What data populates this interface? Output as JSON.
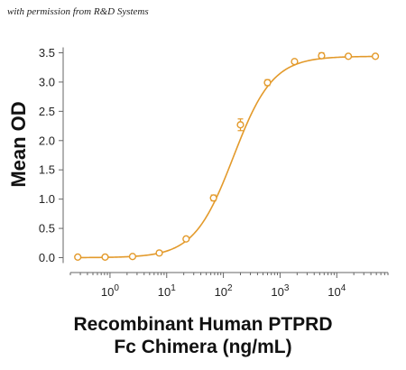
{
  "credit": "with permission from R&D Systems",
  "chart_data": {
    "type": "scatter",
    "ylabel": "Mean OD",
    "xlabel_lines": [
      "Recombinant Human PTPRD",
      "Fc Chimera (ng/mL)"
    ],
    "x_scale": "log",
    "xlim": [
      0.2,
      80000
    ],
    "ylim": [
      -0.1,
      3.6
    ],
    "x_ticks": [
      1,
      10,
      100,
      1000,
      10000
    ],
    "x_tick_labels": [
      {
        "base": "10",
        "exp": "0"
      },
      {
        "base": "10",
        "exp": "1"
      },
      {
        "base": "10",
        "exp": "2"
      },
      {
        "base": "10",
        "exp": "3"
      },
      {
        "base": "10",
        "exp": "4"
      }
    ],
    "y_ticks": [
      0.0,
      0.5,
      1.0,
      1.5,
      2.0,
      2.5,
      3.0,
      3.5
    ],
    "y_tick_labels": [
      "0.0",
      "0.5",
      "1.0",
      "1.5",
      "2.0",
      "2.5",
      "3.0",
      "3.5"
    ],
    "color": "#E39A2B",
    "series": [
      {
        "points": [
          {
            "x": 0.27,
            "y": 0.01,
            "err": 0.01
          },
          {
            "x": 0.82,
            "y": 0.01,
            "err": 0.01
          },
          {
            "x": 2.5,
            "y": 0.02,
            "err": 0.01
          },
          {
            "x": 7.4,
            "y": 0.08,
            "err": 0.02
          },
          {
            "x": 22,
            "y": 0.32,
            "err": 0.03
          },
          {
            "x": 67,
            "y": 1.02,
            "err": 0.05
          },
          {
            "x": 200,
            "y": 2.27,
            "err": 0.1
          },
          {
            "x": 600,
            "y": 2.99,
            "err": 0.05
          },
          {
            "x": 1800,
            "y": 3.35,
            "err": 0.03
          },
          {
            "x": 5400,
            "y": 3.45,
            "err": 0.05
          },
          {
            "x": 16000,
            "y": 3.44,
            "err": 0.03
          },
          {
            "x": 48000,
            "y": 3.44,
            "err": 0.02
          }
        ],
        "fit": {
          "bottom": 0.0,
          "top": 3.44,
          "ec50": 150,
          "hill": 1.25
        }
      }
    ]
  }
}
